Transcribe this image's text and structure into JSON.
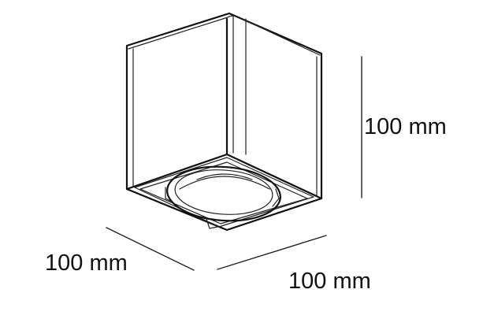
{
  "dimensions": {
    "height": "100 mm",
    "depth": "100 mm",
    "width": "100 mm"
  },
  "colors": {
    "line": "#111111",
    "background": "#ffffff"
  }
}
